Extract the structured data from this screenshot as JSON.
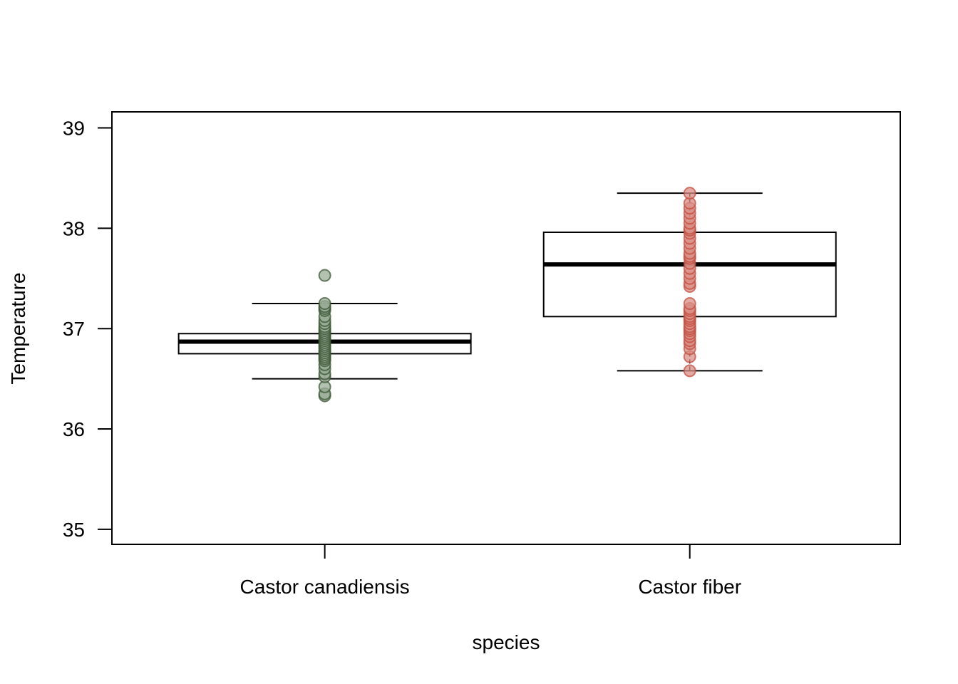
{
  "chart_data": {
    "type": "box",
    "title": "",
    "xlabel": "species",
    "ylabel": "Temperature",
    "ylim": [
      34.85,
      39.16
    ],
    "yticks": [
      35,
      36,
      37,
      38,
      39
    ],
    "ytick_labels": [
      "35",
      "36",
      "37",
      "38",
      "39"
    ],
    "grid": false,
    "legend": "none",
    "categories": [
      "Castor canadiensis",
      "Castor fiber"
    ],
    "series": [
      {
        "category": "Castor canadiensis",
        "color": "#34502f",
        "fill": "#9aac96",
        "whisker_low": 36.5,
        "q1": 36.75,
        "median": 36.87,
        "q3": 36.95,
        "whisker_high": 37.25,
        "points": [
          36.33,
          36.35,
          36.42,
          36.52,
          36.55,
          36.6,
          36.64,
          36.68,
          36.7,
          36.72,
          36.74,
          36.76,
          36.78,
          36.8,
          36.82,
          36.84,
          36.86,
          36.88,
          36.9,
          36.92,
          36.94,
          36.96,
          36.98,
          37.0,
          37.02,
          37.05,
          37.08,
          37.12,
          37.18,
          37.2,
          37.22,
          37.25,
          37.53
        ]
      },
      {
        "category": "Castor fiber",
        "color": "#c0493a",
        "fill": "#d98f86",
        "whisker_low": 36.58,
        "q1": 37.12,
        "median": 37.64,
        "q3": 37.96,
        "whisker_high": 38.35,
        "points": [
          36.58,
          36.72,
          36.8,
          36.85,
          36.88,
          36.92,
          36.95,
          36.98,
          37.0,
          37.02,
          37.05,
          37.08,
          37.1,
          37.12,
          37.15,
          37.18,
          37.2,
          37.25,
          37.42,
          37.45,
          37.5,
          37.55,
          37.6,
          37.65,
          37.7,
          37.72,
          37.75,
          37.8,
          37.85,
          37.9,
          37.95,
          37.98,
          38.0,
          38.05,
          38.1,
          38.15,
          38.2,
          38.25,
          38.35
        ]
      }
    ]
  }
}
